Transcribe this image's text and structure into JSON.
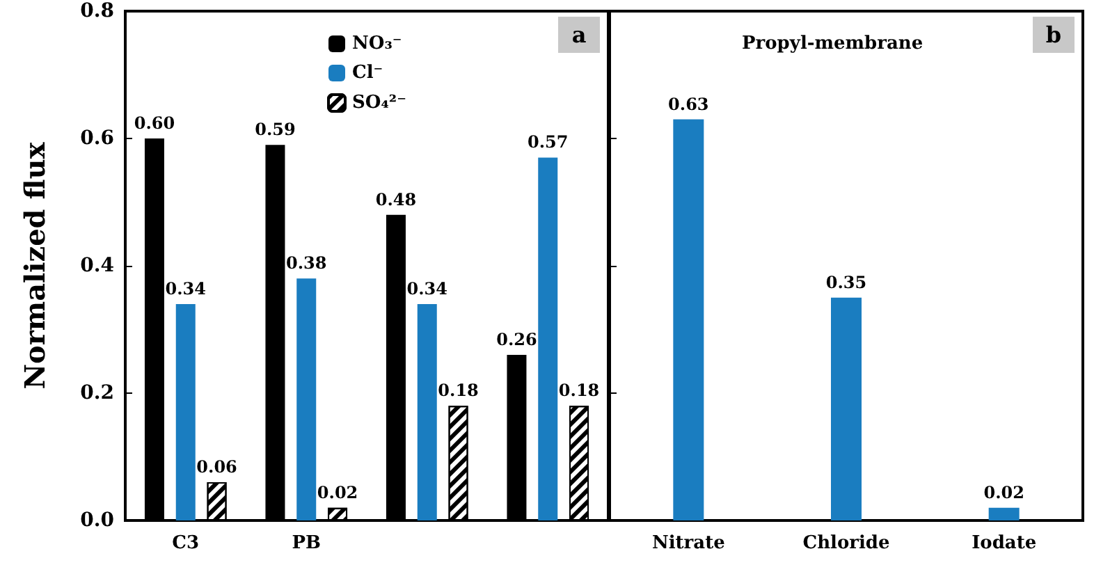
{
  "chart_data": [
    {
      "type": "bar",
      "ylabel": "Normalized flux",
      "categories": [
        "C3",
        "PB",
        null,
        null
      ],
      "series": [
        {
          "name": "NO₃⁻",
          "color": "#000000",
          "values": [
            0.6,
            0.59,
            0.48,
            0.26
          ],
          "value_labels": [
            "0.60",
            "0.59",
            "0.48",
            "0.26"
          ]
        },
        {
          "name": "Cl⁻",
          "color": "#1a7dc0",
          "values": [
            0.34,
            0.38,
            0.34,
            0.57
          ],
          "value_labels": [
            "0.34",
            "0.38",
            "0.34",
            "0.57"
          ]
        },
        {
          "name": "SO₄²⁻",
          "color": "#ffffff",
          "values": [
            0.06,
            0.02,
            0.18,
            0.18
          ],
          "value_labels": [
            "0.06",
            "0.02",
            "0.18",
            "0.18"
          ]
        }
      ],
      "ylim": [
        0,
        0.8
      ],
      "yticks": [
        {
          "value": 0,
          "label": "0.0"
        },
        {
          "value": 0.2,
          "label": "0.2"
        },
        {
          "value": 0.4,
          "label": "0.4"
        },
        {
          "value": 0.6,
          "label": "0.6"
        },
        {
          "value": 0.8,
          "label": "0.8"
        }
      ],
      "legend": "top",
      "grid": false,
      "annotations": [
        "a"
      ]
    },
    {
      "type": "bar",
      "title": "Propyl-membrane",
      "categories": [
        "Nitrate",
        "Chloride",
        "Iodate"
      ],
      "series": [
        {
          "color": "#1a7dc0",
          "values": [
            0.63,
            0.35,
            0.02
          ],
          "value_labels": [
            "0.63",
            "0.35",
            "0.02"
          ]
        }
      ],
      "ylim": [
        0,
        0.8
      ],
      "yticks": [
        {
          "value": 0,
          "label": null
        },
        {
          "value": 0.2,
          "label": null
        },
        {
          "value": 0.4,
          "label": null
        },
        {
          "value": 0.6,
          "label": null
        },
        {
          "value": 0.8,
          "label": null
        }
      ],
      "tick_labels": "x",
      "grid": false,
      "annotations": [
        "b"
      ]
    }
  ]
}
